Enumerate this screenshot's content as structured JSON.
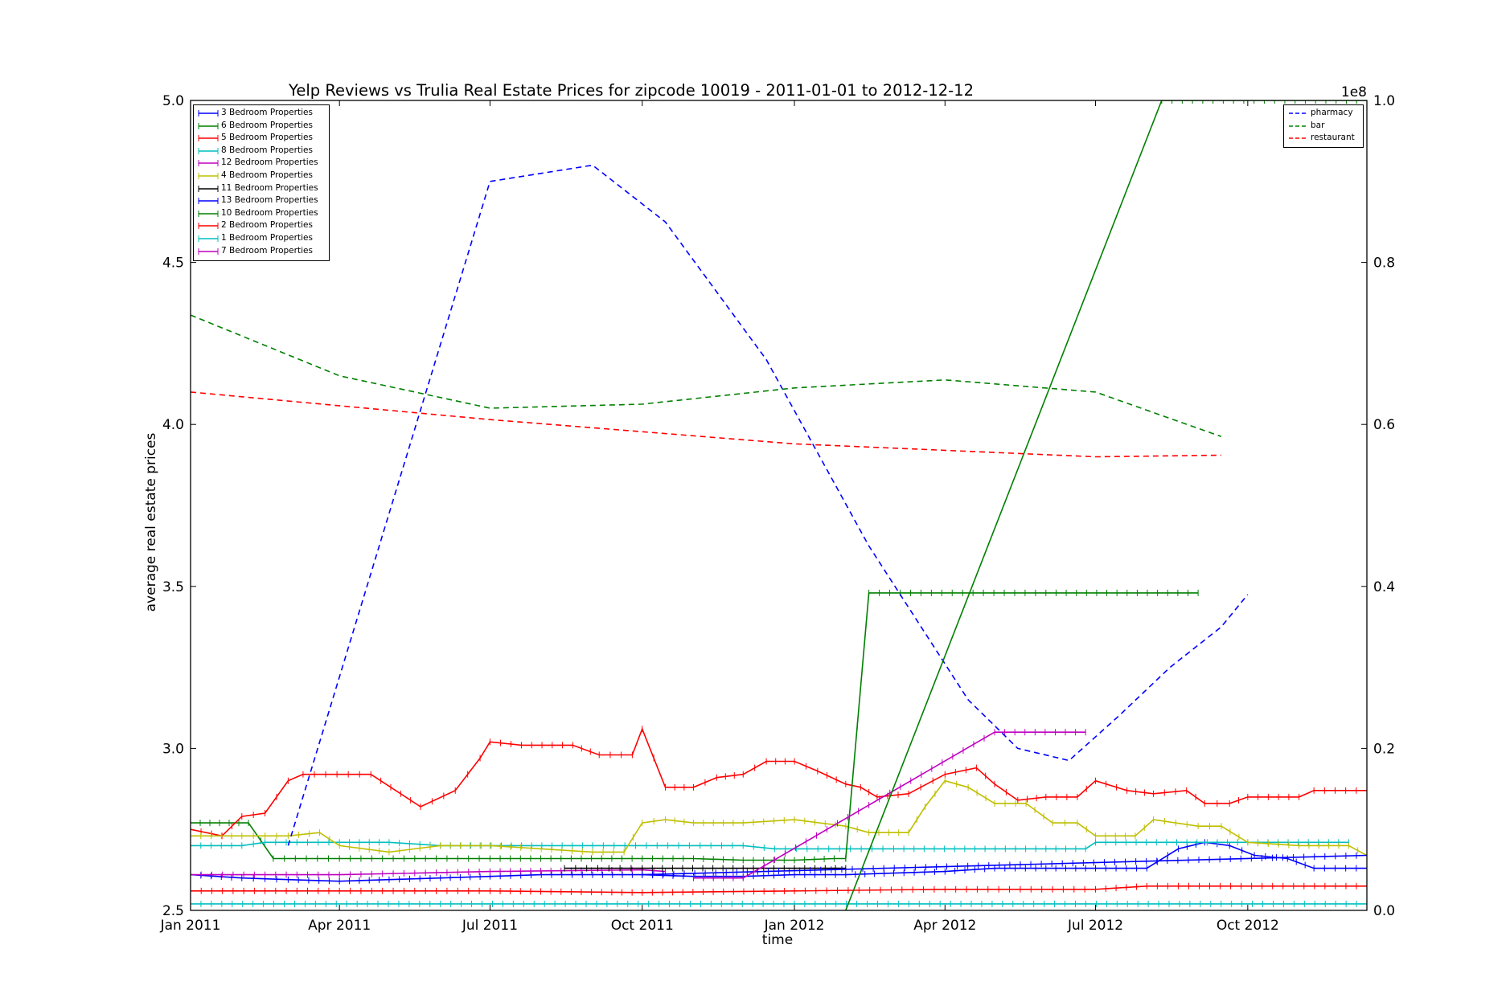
{
  "chart_data": {
    "type": "line",
    "title": "Yelp Reviews vs Trulia Real Estate Prices for zipcode 10019 - 2011-01-01 to 2012-12-12",
    "xlabel": "time",
    "ylabel": "average real estate prices",
    "y2_exponent_label": "1e8",
    "xlim": [
      "2011-01-01",
      "2012-12-12"
    ],
    "ylim": [
      2.5,
      5.0
    ],
    "y2lim": [
      0.0,
      1.0
    ],
    "x_tick_labels": [
      "Jan 2011",
      "Apr 2011",
      "Jul 2011",
      "Oct 2011",
      "Jan 2012",
      "Apr 2012",
      "Jul 2012",
      "Oct 2012"
    ],
    "x_tick_dates": [
      "2011-01-01",
      "2011-04-01",
      "2011-07-01",
      "2011-10-01",
      "2012-01-01",
      "2012-04-01",
      "2012-07-01",
      "2012-10-01"
    ],
    "y_tick_labels": [
      "2.5",
      "3.0",
      "3.5",
      "4.0",
      "4.5",
      "5.0"
    ],
    "y2_tick_labels": [
      "0.0",
      "0.2",
      "0.4",
      "0.6",
      "0.8",
      "1.0"
    ],
    "grid": false,
    "legend_left_position": "upper left",
    "legend_right_position": "upper right",
    "series": [
      {
        "name": "3 Bedroom Properties",
        "color": "#0000ff",
        "axis": "left",
        "style": "solid-plus",
        "points": [
          [
            "2011-01-01",
            2.61
          ],
          [
            "2011-02-01",
            2.6
          ],
          [
            "2011-03-01",
            2.595
          ],
          [
            "2011-04-01",
            2.59
          ],
          [
            "2011-05-01",
            2.595
          ],
          [
            "2011-06-01",
            2.6
          ],
          [
            "2011-07-01",
            2.605
          ],
          [
            "2011-08-01",
            2.61
          ],
          [
            "2011-09-01",
            2.61
          ],
          [
            "2011-10-01",
            2.61
          ],
          [
            "2011-11-01",
            2.605
          ],
          [
            "2011-12-01",
            2.605
          ],
          [
            "2012-01-01",
            2.61
          ],
          [
            "2012-02-01",
            2.61
          ],
          [
            "2012-03-01",
            2.615
          ],
          [
            "2012-04-01",
            2.62
          ],
          [
            "2012-05-01",
            2.63
          ],
          [
            "2012-06-01",
            2.63
          ],
          [
            "2012-07-01",
            2.63
          ],
          [
            "2012-08-01",
            2.63
          ],
          [
            "2012-08-20",
            2.69
          ],
          [
            "2012-09-05",
            2.71
          ],
          [
            "2012-09-20",
            2.7
          ],
          [
            "2012-10-05",
            2.67
          ],
          [
            "2012-10-25",
            2.66
          ],
          [
            "2012-11-10",
            2.63
          ],
          [
            "2012-12-12",
            2.63
          ]
        ]
      },
      {
        "name": "6 Bedroom Properties",
        "color": "#008000",
        "axis": "left",
        "style": "solid-plus",
        "points": [
          [
            "2011-01-01",
            2.77
          ],
          [
            "2011-02-05",
            2.77
          ],
          [
            "2011-02-20",
            2.66
          ],
          [
            "2011-04-01",
            2.66
          ],
          [
            "2011-07-01",
            2.66
          ],
          [
            "2011-10-01",
            2.66
          ],
          [
            "2011-11-01",
            2.66
          ],
          [
            "2011-12-01",
            2.655
          ],
          [
            "2012-01-01",
            2.655
          ],
          [
            "2012-01-25",
            2.66
          ],
          [
            "2012-02-01",
            2.66
          ]
        ]
      },
      {
        "name": "5 Bedroom Properties",
        "color": "#ff0000",
        "axis": "left",
        "style": "solid-plus",
        "points": [
          [
            "2011-01-01",
            2.75
          ],
          [
            "2011-01-20",
            2.73
          ],
          [
            "2011-02-01",
            2.79
          ],
          [
            "2011-02-15",
            2.8
          ],
          [
            "2011-03-01",
            2.9
          ],
          [
            "2011-03-10",
            2.92
          ],
          [
            "2011-04-20",
            2.92
          ],
          [
            "2011-05-20",
            2.82
          ],
          [
            "2011-06-10",
            2.87
          ],
          [
            "2011-06-25",
            2.97
          ],
          [
            "2011-07-01",
            3.02
          ],
          [
            "2011-07-20",
            3.01
          ],
          [
            "2011-08-20",
            3.01
          ],
          [
            "2011-09-05",
            2.98
          ],
          [
            "2011-09-25",
            2.98
          ],
          [
            "2011-10-01",
            3.06
          ],
          [
            "2011-10-15",
            2.88
          ],
          [
            "2011-11-01",
            2.88
          ],
          [
            "2011-11-15",
            2.91
          ],
          [
            "2011-12-01",
            2.92
          ],
          [
            "2011-12-15",
            2.96
          ],
          [
            "2012-01-01",
            2.96
          ],
          [
            "2012-01-15",
            2.93
          ],
          [
            "2012-02-01",
            2.89
          ],
          [
            "2012-02-10",
            2.88
          ],
          [
            "2012-02-20",
            2.85
          ],
          [
            "2012-03-10",
            2.86
          ],
          [
            "2012-04-01",
            2.92
          ],
          [
            "2012-04-20",
            2.94
          ],
          [
            "2012-05-01",
            2.89
          ],
          [
            "2012-05-15",
            2.84
          ],
          [
            "2012-06-01",
            2.85
          ],
          [
            "2012-06-20",
            2.85
          ],
          [
            "2012-07-01",
            2.9
          ],
          [
            "2012-07-20",
            2.87
          ],
          [
            "2012-08-05",
            2.86
          ],
          [
            "2012-08-25",
            2.87
          ],
          [
            "2012-09-05",
            2.83
          ],
          [
            "2012-09-20",
            2.83
          ],
          [
            "2012-10-01",
            2.85
          ],
          [
            "2012-11-01",
            2.85
          ],
          [
            "2012-11-10",
            2.87
          ],
          [
            "2012-12-12",
            2.87
          ]
        ]
      },
      {
        "name": "8 Bedroom Properties",
        "color": "#00bfbf",
        "axis": "left",
        "style": "solid-plus",
        "points": [
          [
            "2011-01-01",
            2.7
          ],
          [
            "2011-02-01",
            2.7
          ],
          [
            "2011-02-15",
            2.71
          ],
          [
            "2011-04-01",
            2.71
          ],
          [
            "2011-05-01",
            2.71
          ],
          [
            "2011-06-01",
            2.7
          ],
          [
            "2011-09-01",
            2.7
          ],
          [
            "2011-12-01",
            2.7
          ],
          [
            "2011-12-20",
            2.69
          ],
          [
            "2012-03-01",
            2.69
          ],
          [
            "2012-06-01",
            2.69
          ],
          [
            "2012-06-25",
            2.69
          ],
          [
            "2012-07-01",
            2.71
          ],
          [
            "2012-10-01",
            2.71
          ],
          [
            "2012-12-01",
            2.71
          ]
        ]
      },
      {
        "name": "12 Bedroom Properties",
        "color": "#bf00bf",
        "axis": "left",
        "style": "solid-plus",
        "points": [
          [
            "2011-01-01",
            2.61
          ],
          [
            "2011-04-01",
            2.61
          ],
          [
            "2011-07-01",
            2.62
          ],
          [
            "2011-10-01",
            2.625
          ],
          [
            "2011-10-15",
            2.62
          ]
        ]
      },
      {
        "name": "4 Bedroom Properties",
        "color": "#bfbf00",
        "axis": "left",
        "style": "solid-plus",
        "points": [
          [
            "2011-01-01",
            2.73
          ],
          [
            "2011-02-01",
            2.73
          ],
          [
            "2011-03-01",
            2.73
          ],
          [
            "2011-03-20",
            2.74
          ],
          [
            "2011-04-01",
            2.7
          ],
          [
            "2011-05-01",
            2.68
          ],
          [
            "2011-06-01",
            2.7
          ],
          [
            "2011-07-01",
            2.7
          ],
          [
            "2011-08-01",
            2.69
          ],
          [
            "2011-09-01",
            2.68
          ],
          [
            "2011-09-20",
            2.68
          ],
          [
            "2011-10-01",
            2.77
          ],
          [
            "2011-10-15",
            2.78
          ],
          [
            "2011-11-01",
            2.77
          ],
          [
            "2011-12-01",
            2.77
          ],
          [
            "2012-01-01",
            2.78
          ],
          [
            "2012-02-01",
            2.76
          ],
          [
            "2012-02-15",
            2.74
          ],
          [
            "2012-03-10",
            2.74
          ],
          [
            "2012-03-20",
            2.82
          ],
          [
            "2012-04-01",
            2.9
          ],
          [
            "2012-04-15",
            2.88
          ],
          [
            "2012-05-01",
            2.83
          ],
          [
            "2012-05-20",
            2.83
          ],
          [
            "2012-06-05",
            2.77
          ],
          [
            "2012-06-20",
            2.77
          ],
          [
            "2012-07-01",
            2.73
          ],
          [
            "2012-07-25",
            2.73
          ],
          [
            "2012-08-05",
            2.78
          ],
          [
            "2012-09-01",
            2.76
          ],
          [
            "2012-09-15",
            2.76
          ],
          [
            "2012-10-01",
            2.71
          ],
          [
            "2012-11-01",
            2.7
          ],
          [
            "2012-12-01",
            2.7
          ],
          [
            "2012-12-12",
            2.67
          ]
        ]
      },
      {
        "name": "11 Bedroom Properties",
        "color": "#000000",
        "axis": "left",
        "style": "solid-plus",
        "points": [
          [
            "2011-08-15",
            2.63
          ],
          [
            "2011-10-01",
            2.63
          ],
          [
            "2011-12-01",
            2.63
          ],
          [
            "2012-02-01",
            2.63
          ]
        ]
      },
      {
        "name": "13 Bedroom Properties",
        "color": "#0000ff",
        "axis": "left",
        "style": "solid-plus",
        "points": [
          [
            "2011-10-01",
            2.61
          ],
          [
            "2012-12-12",
            2.67
          ]
        ]
      },
      {
        "name": "10 Bedroom Properties",
        "color": "#008000",
        "axis": "left",
        "style": "solid-plus",
        "points": [
          [
            "2012-02-01",
            2.66
          ],
          [
            "2012-02-15",
            3.48
          ],
          [
            "2012-06-01",
            3.48
          ],
          [
            "2012-09-01",
            3.48
          ]
        ]
      },
      {
        "name": "2 Bedroom Properties",
        "color": "#ff0000",
        "axis": "left",
        "style": "solid-plus",
        "points": [
          [
            "2011-01-01",
            2.56
          ],
          [
            "2011-04-01",
            2.56
          ],
          [
            "2011-07-01",
            2.56
          ],
          [
            "2011-10-01",
            2.555
          ],
          [
            "2012-01-01",
            2.56
          ],
          [
            "2012-04-01",
            2.565
          ],
          [
            "2012-07-01",
            2.565
          ],
          [
            "2012-08-01",
            2.575
          ],
          [
            "2012-12-12",
            2.575
          ]
        ]
      },
      {
        "name": "1 Bedroom Properties",
        "color": "#00bfbf",
        "axis": "left",
        "style": "solid-plus",
        "points": [
          [
            "2011-01-01",
            2.52
          ],
          [
            "2012-12-12",
            2.52
          ]
        ]
      },
      {
        "name": "7 Bedroom Properties",
        "color": "#bf00bf",
        "axis": "left",
        "style": "solid-plus",
        "points": [
          [
            "2011-11-01",
            2.6
          ],
          [
            "2011-12-01",
            2.6
          ],
          [
            "2012-05-01",
            3.05
          ],
          [
            "2012-06-25",
            3.05
          ]
        ]
      },
      {
        "name": "pharmacy",
        "color": "#0000ff",
        "axis": "right",
        "style": "dashed",
        "points": [
          [
            "2011-03-01",
            0.08
          ],
          [
            "2011-07-01",
            0.9
          ],
          [
            "2011-09-01",
            0.92
          ],
          [
            "2011-10-15",
            0.85
          ],
          [
            "2011-12-15",
            0.68
          ],
          [
            "2012-02-15",
            0.45
          ],
          [
            "2012-04-15",
            0.26
          ],
          [
            "2012-05-15",
            0.2
          ],
          [
            "2012-06-15",
            0.185
          ],
          [
            "2012-07-15",
            0.24
          ],
          [
            "2012-08-15",
            0.3
          ],
          [
            "2012-09-15",
            0.35
          ],
          [
            "2012-10-01",
            0.39
          ]
        ]
      },
      {
        "name": "bar",
        "color": "#008000",
        "axis": "right",
        "style": "dashed",
        "points": [
          [
            "2011-01-01",
            0.735
          ],
          [
            "2011-04-01",
            0.66
          ],
          [
            "2011-07-01",
            0.62
          ],
          [
            "2011-10-01",
            0.625
          ],
          [
            "2012-01-01",
            0.645
          ],
          [
            "2012-04-01",
            0.655
          ],
          [
            "2012-07-01",
            0.64
          ],
          [
            "2012-09-15",
            0.585
          ]
        ]
      },
      {
        "name": "restaurant",
        "color": "#ff0000",
        "axis": "right",
        "style": "dashed",
        "points": [
          [
            "2011-01-01",
            0.64
          ],
          [
            "2011-07-01",
            0.606
          ],
          [
            "2012-01-01",
            0.576
          ],
          [
            "2012-07-01",
            0.56
          ],
          [
            "2012-09-15",
            0.562
          ]
        ]
      },
      {
        "name": "",
        "color": "#008000",
        "axis": "right",
        "style": "solid-plus-tail",
        "points": [
          [
            "2012-02-01",
            0.0
          ],
          [
            "2012-08-10",
            1.0
          ],
          [
            "2012-12-12",
            1.0
          ]
        ]
      }
    ]
  }
}
